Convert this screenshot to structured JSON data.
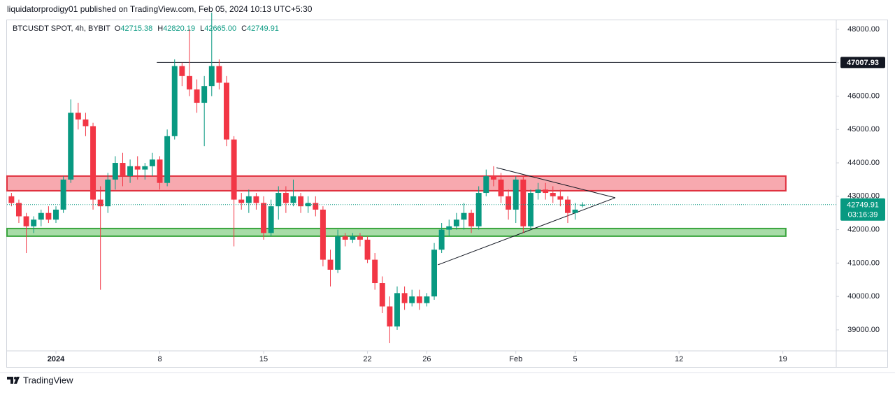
{
  "header": {
    "published": "liquidatorprodigy01 published on TradingView.com, Feb 05, 2024 10:13 UTC+5:30",
    "symbol": "BTCUSDT SPOT, 4h, BYBIT",
    "ohlc": [
      [
        "O",
        "42715.38"
      ],
      [
        "H",
        "42820.19"
      ],
      [
        "L",
        "42665.00"
      ],
      [
        "C",
        "42749.91"
      ]
    ]
  },
  "footer": {
    "brand": "TradingView"
  },
  "chart_data": {
    "type": "candlestick",
    "x": [
      -2,
      -1.5,
      -1,
      -0.5,
      0,
      0.5,
      1,
      1.5,
      2,
      2.5,
      3,
      3.5,
      4,
      4.5,
      5,
      5.5,
      6,
      6.5,
      7,
      7.5,
      8,
      8.5,
      9,
      9.5,
      10,
      10.5,
      11,
      11.5,
      12,
      12.5,
      13,
      13.5,
      14,
      14.5,
      15,
      15.5,
      16,
      16.5,
      17,
      17.5,
      18,
      18.5,
      19,
      19.5,
      20,
      20.5,
      21,
      21.5,
      22,
      22.5,
      23,
      23.5,
      24,
      24.5,
      25,
      25.5,
      26,
      26.5,
      27,
      27.5,
      28,
      28.5,
      29,
      29.5,
      30,
      30.5,
      31,
      31.5,
      32,
      32.5,
      33,
      33.5,
      34,
      34.5,
      35,
      35.5,
      36,
      36.5
    ],
    "open": [
      43000,
      42800,
      42400,
      42100,
      42300,
      42500,
      42300,
      42600,
      43500,
      45500,
      45300,
      45100,
      42900,
      42700,
      43500,
      44000,
      43600,
      43900,
      43800,
      43900,
      44100,
      43400,
      44800,
      46900,
      46600,
      46200,
      45800,
      46300,
      46900,
      46400,
      44700,
      42900,
      42800,
      43000,
      42800,
      41900,
      42700,
      43100,
      42800,
      43000,
      42700,
      42800,
      42600,
      41100,
      40800,
      41800,
      41700,
      41800,
      41700,
      41100,
      40400,
      39700,
      39100,
      40100,
      39800,
      40000,
      39800,
      40000,
      41400,
      42000,
      42100,
      42300,
      42500,
      42100,
      43100,
      43600,
      43500,
      43000,
      42600,
      43500,
      42100,
      43100,
      43200,
      43100,
      43000,
      42900,
      42500,
      42715.38
    ],
    "high": [
      43100,
      42900,
      42500,
      42400,
      42600,
      42700,
      42700,
      43600,
      45900,
      45800,
      45500,
      45200,
      43300,
      43700,
      44200,
      44300,
      44100,
      44200,
      44000,
      44300,
      44200,
      45000,
      47100,
      47000,
      48000,
      46500,
      46600,
      48500,
      47100,
      46600,
      44800,
      43100,
      43200,
      43100,
      43000,
      42900,
      43300,
      43300,
      43500,
      43100,
      43000,
      43000,
      42700,
      41400,
      42000,
      41900,
      41900,
      41900,
      41800,
      41300,
      40600,
      40000,
      40300,
      40300,
      40200,
      40200,
      40100,
      41600,
      42200,
      42300,
      42500,
      42800,
      42600,
      43300,
      43800,
      43900,
      43700,
      43200,
      43600,
      43600,
      43200,
      43400,
      43400,
      43300,
      43200,
      43000,
      42800,
      42820.19
    ],
    "low": [
      42700,
      42200,
      41300,
      41900,
      42100,
      42200,
      42200,
      42500,
      43400,
      45000,
      44800,
      42600,
      40200,
      42500,
      43200,
      43300,
      43400,
      43500,
      43500,
      43600,
      43200,
      43300,
      44700,
      46300,
      46000,
      45500,
      44500,
      46000,
      46200,
      44500,
      41500,
      42600,
      42500,
      42600,
      41700,
      41800,
      42300,
      42500,
      42700,
      42500,
      42500,
      42400,
      40900,
      40300,
      40700,
      41500,
      41600,
      41500,
      41000,
      40200,
      39500,
      38600,
      39000,
      39600,
      39700,
      39600,
      39700,
      39900,
      41300,
      41800,
      42000,
      42000,
      41900,
      42000,
      43000,
      43300,
      42800,
      42300,
      42200,
      41900,
      42000,
      42900,
      42900,
      42800,
      42700,
      42200,
      42300,
      42665
    ],
    "close": [
      42800,
      42400,
      42100,
      42300,
      42500,
      42300,
      42600,
      43500,
      45500,
      45300,
      45100,
      42900,
      42700,
      43500,
      44000,
      43600,
      43900,
      43800,
      43900,
      44100,
      43400,
      44800,
      46900,
      46600,
      46200,
      45800,
      46300,
      46900,
      46400,
      44700,
      42900,
      42800,
      43000,
      42800,
      41900,
      42700,
      43100,
      42800,
      43000,
      42700,
      42800,
      42600,
      41100,
      40800,
      41800,
      41700,
      41800,
      41700,
      41100,
      40400,
      39700,
      39100,
      40100,
      39800,
      40000,
      39800,
      40000,
      41400,
      42000,
      42100,
      42300,
      42500,
      42100,
      43100,
      43600,
      43500,
      43000,
      42600,
      43500,
      42100,
      43100,
      43200,
      43100,
      43000,
      42900,
      42500,
      42600,
      42749.91
    ],
    "colors": {
      "up": "#089981",
      "down": "#f23645"
    },
    "xlim": [
      -2.3,
      53.6
    ],
    "xticks": [
      {
        "value": 1,
        "label": "2024"
      },
      8,
      15,
      22,
      26,
      {
        "value": 32,
        "label": "Feb"
      },
      {
        "value": 36,
        "label": "5"
      },
      {
        "value": 43,
        "label": "12"
      },
      {
        "value": 50,
        "label": "19"
      }
    ],
    "ylim": [
      38370,
      48250
    ],
    "yticks": [
      {
        "value": 39000,
        "label": "39000.00"
      },
      {
        "value": 40000,
        "label": "40000.00"
      },
      {
        "value": 41000,
        "label": "41000.00"
      },
      {
        "value": 42000,
        "label": "42000.00"
      },
      {
        "value": 43000,
        "label": "43000.00"
      },
      {
        "value": 44000,
        "label": "44000.00"
      },
      {
        "value": 45000,
        "label": "45000.00"
      },
      {
        "value": 46000,
        "label": "46000.00"
      },
      {
        "value": 47000,
        "label": "47000.00"
      },
      {
        "value": 48000,
        "label": "48000.00"
      }
    ],
    "last_price": {
      "value": 42749.91,
      "countdown": "03:16:39",
      "color": "#089981"
    },
    "level": {
      "value": 47007.93,
      "from": 7.8
    },
    "zones": [
      {
        "from": -2.3,
        "to": 50.2,
        "low": 43165,
        "high": 43605,
        "color": "#f7a9af",
        "stroke": "#e0313f"
      },
      {
        "from": -2.3,
        "to": 50.2,
        "low": 41805,
        "high": 42035,
        "color": "#a8dca8",
        "stroke": "#3aa53e"
      }
    ],
    "triangle": [
      {
        "x": [
          30.7,
          38.7
        ],
        "y": [
          43856,
          42956
        ]
      },
      {
        "x": [
          26.75,
          38.7
        ],
        "y": [
          40947,
          42956
        ]
      }
    ]
  }
}
